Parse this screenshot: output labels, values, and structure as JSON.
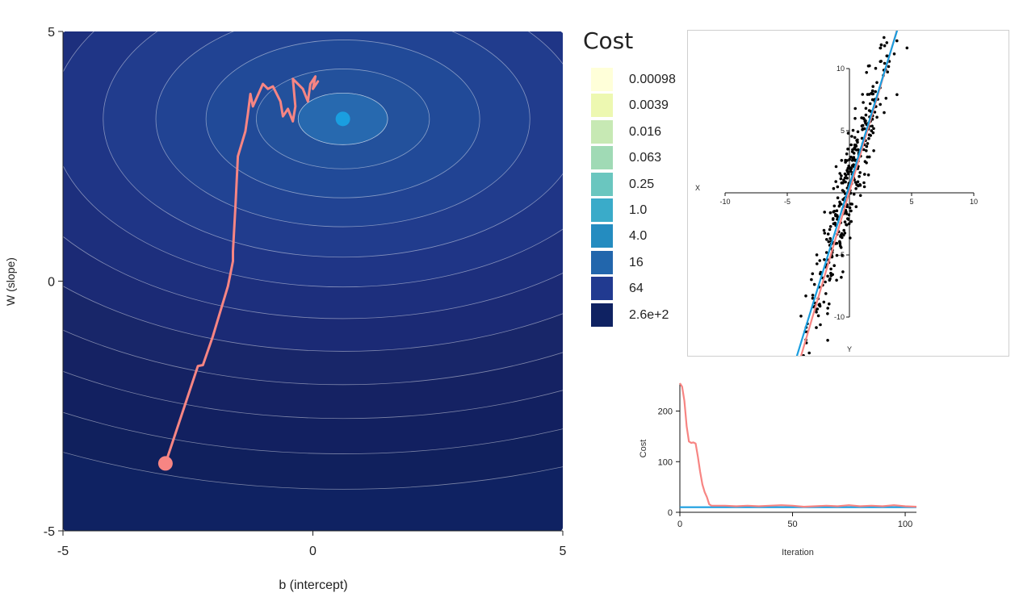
{
  "chart_data": [
    {
      "type": "contour",
      "xlabel": "b (intercept)",
      "ylabel": "W (slope)",
      "xlim": [
        -5,
        5
      ],
      "ylim": [
        -5,
        5
      ],
      "x_ticks": [
        "-5",
        "0",
        "5"
      ],
      "y_ticks": [
        "5",
        "0",
        "-5"
      ],
      "minimum": {
        "b": 0.6,
        "W": 3.25
      },
      "start": {
        "b": -2.95,
        "W": -3.65
      },
      "path": [
        [
          -2.95,
          -3.65
        ],
        [
          -2.8,
          -3.2
        ],
        [
          -2.6,
          -2.6
        ],
        [
          -2.3,
          -1.7
        ],
        [
          -2.2,
          -1.68
        ],
        [
          -2.0,
          -1.1
        ],
        [
          -1.85,
          -0.6
        ],
        [
          -1.7,
          -0.1
        ],
        [
          -1.6,
          0.4
        ],
        [
          -1.6,
          0.6
        ],
        [
          -1.55,
          1.5
        ],
        [
          -1.5,
          2.5
        ],
        [
          -1.35,
          3.0
        ],
        [
          -1.3,
          3.35
        ],
        [
          -1.25,
          3.75
        ],
        [
          -1.2,
          3.5
        ],
        [
          -1.0,
          3.95
        ],
        [
          -0.9,
          3.85
        ],
        [
          -0.8,
          3.9
        ],
        [
          -0.65,
          3.6
        ],
        [
          -0.6,
          3.3
        ],
        [
          -0.5,
          3.45
        ],
        [
          -0.4,
          3.2
        ],
        [
          -0.35,
          3.5
        ],
        [
          -0.4,
          4.05
        ],
        [
          -0.2,
          3.85
        ],
        [
          -0.1,
          3.6
        ],
        [
          -0.05,
          3.95
        ],
        [
          0.05,
          4.1
        ],
        [
          0.0,
          3.85
        ],
        [
          0.1,
          4.0
        ]
      ],
      "legend_title": "Cost",
      "levels": [
        "0.00098",
        "0.0039",
        "0.016",
        "0.063",
        "0.25",
        "1.0",
        "4.0",
        "16",
        "64",
        "2.6e+2"
      ],
      "level_colors": [
        "#ffffd9",
        "#edf8b1",
        "#c7e9b4",
        "#a0dab5",
        "#6ac6bf",
        "#3aabc9",
        "#248cc0",
        "#2266ac",
        "#213a90",
        "#0f2262"
      ],
      "path_color": "#f78583",
      "minimum_color": "#1a9ee0"
    },
    {
      "type": "scatter",
      "x_ticks": [
        "-10",
        "-5",
        "5",
        "10"
      ],
      "y_ticks": [
        "10",
        "5",
        "-5",
        "-10"
      ],
      "x_axis_letter": "X",
      "y_axis_letter": "Y",
      "xlim": [
        -10,
        10
      ],
      "ylim": [
        -10,
        10
      ],
      "true_line": {
        "b": 0.6,
        "W": 3.25
      },
      "fitted_line": {
        "b": 0.1,
        "W": 3.4
      },
      "true_color": "#1a9ee0",
      "fitted_color": "#f78583",
      "n_points": 360,
      "noise_sd": 2.0
    },
    {
      "type": "line",
      "xlabel": "Iteration",
      "ylabel": "Cost",
      "x_ticks": [
        "0",
        "50",
        "100"
      ],
      "y_ticks": [
        "0",
        "100",
        "200"
      ],
      "xlim": [
        0,
        105
      ],
      "ylim": [
        0,
        255
      ],
      "series": [
        {
          "color": "#f78583",
          "points": [
            [
              0,
              255
            ],
            [
              1,
              248
            ],
            [
              2,
              220
            ],
            [
              3,
              170
            ],
            [
              4,
              140
            ],
            [
              5,
              137
            ],
            [
              6,
              138
            ],
            [
              7,
              136
            ],
            [
              8,
              110
            ],
            [
              9,
              80
            ],
            [
              10,
              55
            ],
            [
              11,
              40
            ],
            [
              12,
              30
            ],
            [
              13,
              16
            ],
            [
              14,
              13
            ],
            [
              20,
              13
            ],
            [
              25,
              12
            ],
            [
              30,
              13
            ],
            [
              35,
              12
            ],
            [
              40,
              13
            ],
            [
              45,
              14
            ],
            [
              50,
              13
            ],
            [
              55,
              11
            ],
            [
              60,
              12
            ],
            [
              65,
              13
            ],
            [
              70,
              12
            ],
            [
              75,
              14
            ],
            [
              80,
              12
            ],
            [
              85,
              13
            ],
            [
              90,
              12
            ],
            [
              95,
              14
            ],
            [
              100,
              12
            ],
            [
              105,
              11
            ]
          ]
        },
        {
          "color": "#1a9ee0",
          "points": [
            [
              0,
              10
            ],
            [
              105,
              10
            ]
          ]
        }
      ]
    }
  ]
}
